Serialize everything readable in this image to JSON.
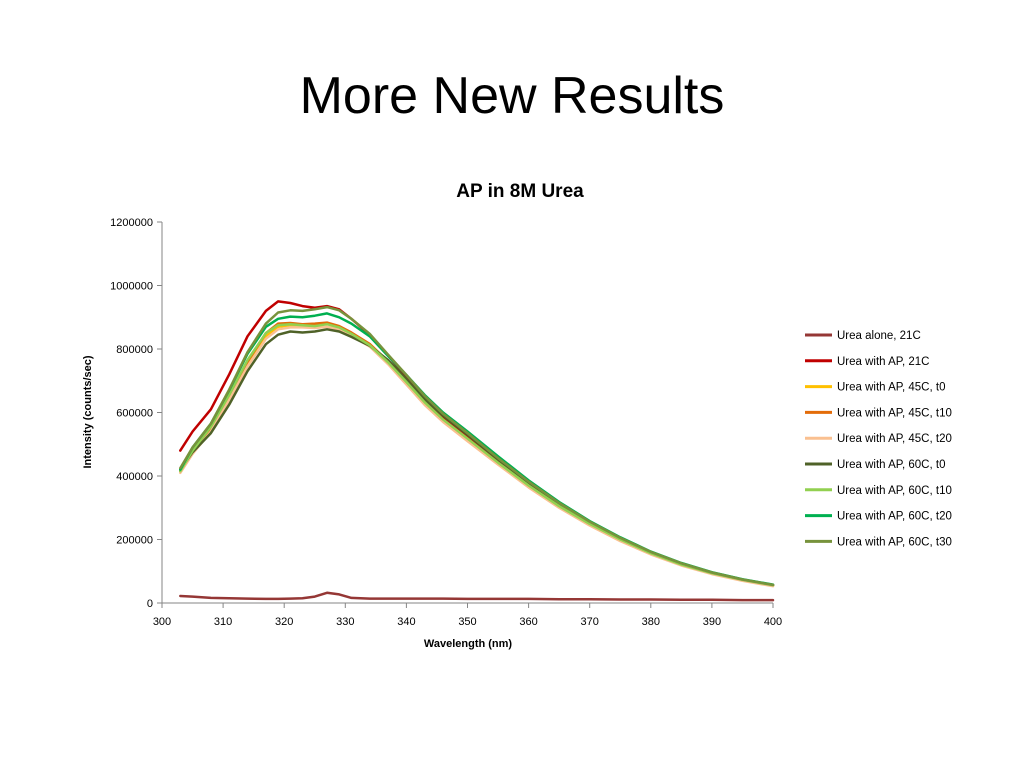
{
  "slide": {
    "title": "More New Results"
  },
  "chart_data": {
    "type": "line",
    "title": "AP in 8M Urea",
    "xlabel": "Wavelength (nm)",
    "ylabel": "Intensity (counts/sec)",
    "xlim": [
      300,
      400
    ],
    "ylim": [
      0,
      1200000
    ],
    "x_ticks": [
      "300",
      "310",
      "320",
      "330",
      "340",
      "350",
      "360",
      "370",
      "380",
      "390",
      "400"
    ],
    "y_ticks": [
      "0",
      "200000",
      "400000",
      "600000",
      "800000",
      "1000000",
      "1200000"
    ],
    "grid": false,
    "legend_position": "right",
    "x": [
      303,
      305,
      308,
      311,
      314,
      317,
      319,
      321,
      323,
      325,
      327,
      329,
      331,
      334,
      337,
      340,
      343,
      346,
      350,
      355,
      360,
      365,
      370,
      375,
      380,
      385,
      390,
      395,
      400
    ],
    "series": [
      {
        "name": "Urea alone, 21C",
        "color": "#953735",
        "values": [
          22000,
          20000,
          16000,
          15000,
          14000,
          13000,
          13000,
          14000,
          15000,
          20000,
          32000,
          27000,
          16000,
          14000,
          14000,
          14000,
          14000,
          14000,
          13000,
          13000,
          13000,
          12000,
          12000,
          11000,
          11000,
          10000,
          10000,
          9000,
          9000
        ]
      },
      {
        "name": "Urea with AP, 21C",
        "color": "#C00000",
        "values": [
          480000,
          540000,
          610000,
          720000,
          840000,
          920000,
          950000,
          945000,
          935000,
          930000,
          935000,
          925000,
          895000,
          845000,
          780000,
          710000,
          640000,
          585000,
          525000,
          445000,
          370000,
          305000,
          248000,
          198000,
          155000,
          120000,
          93000,
          72000,
          55000
        ]
      },
      {
        "name": "Urea with AP, 45C, t0",
        "color": "#FFC000",
        "values": [
          415000,
          475000,
          545000,
          645000,
          755000,
          840000,
          870000,
          875000,
          875000,
          875000,
          880000,
          870000,
          850000,
          815000,
          760000,
          695000,
          630000,
          575000,
          515000,
          440000,
          368000,
          303000,
          247000,
          198000,
          155000,
          120000,
          93000,
          72000,
          55000
        ]
      },
      {
        "name": "Urea with AP, 45C, t10",
        "color": "#E36C09",
        "values": [
          415000,
          478000,
          550000,
          650000,
          760000,
          850000,
          880000,
          882000,
          878000,
          880000,
          883000,
          872000,
          852000,
          816000,
          760000,
          696000,
          630000,
          575000,
          515000,
          440000,
          368000,
          303000,
          247000,
          198000,
          155000,
          120000,
          93000,
          72000,
          55000
        ]
      },
      {
        "name": "Urea with AP, 45C, t20",
        "color": "#FAC090",
        "values": [
          410000,
          470000,
          540000,
          640000,
          745000,
          832000,
          862000,
          868000,
          868000,
          866000,
          870000,
          862000,
          842000,
          808000,
          752000,
          688000,
          624000,
          570000,
          510000,
          436000,
          364000,
          300000,
          244000,
          195000,
          153000,
          118000,
          91000,
          70000,
          53000
        ]
      },
      {
        "name": "Urea with AP, 60C, t0",
        "color": "#4F6228",
        "values": [
          420000,
          475000,
          535000,
          625000,
          730000,
          815000,
          845000,
          855000,
          852000,
          855000,
          862000,
          855000,
          838000,
          810000,
          765000,
          705000,
          642000,
          590000,
          530000,
          452000,
          378000,
          312000,
          254000,
          204000,
          160000,
          124000,
          96000,
          74000,
          57000
        ]
      },
      {
        "name": "Urea with AP, 60C, t10",
        "color": "#92D050",
        "values": [
          415000,
          480000,
          555000,
          655000,
          765000,
          850000,
          875000,
          878000,
          875000,
          872000,
          878000,
          868000,
          848000,
          812000,
          758000,
          696000,
          632000,
          578000,
          518000,
          442000,
          370000,
          305000,
          249000,
          200000,
          157000,
          121000,
          94000,
          73000,
          56000
        ]
      },
      {
        "name": "Urea with AP, 60C, t20",
        "color": "#00B050",
        "values": [
          420000,
          490000,
          565000,
          670000,
          785000,
          870000,
          895000,
          902000,
          900000,
          905000,
          912000,
          900000,
          880000,
          840000,
          778000,
          718000,
          655000,
          600000,
          540000,
          462000,
          386000,
          318000,
          258000,
          207000,
          162000,
          126000,
          97000,
          75000,
          58000
        ]
      },
      {
        "name": "Urea with AP, 60C, t30",
        "color": "#77933C",
        "values": [
          425000,
          490000,
          565000,
          672000,
          790000,
          880000,
          915000,
          922000,
          920000,
          925000,
          932000,
          922000,
          895000,
          848000,
          782000,
          718000,
          652000,
          596000,
          535000,
          456000,
          382000,
          315000,
          256000,
          205000,
          161000,
          125000,
          96000,
          74000,
          57000
        ]
      }
    ]
  }
}
